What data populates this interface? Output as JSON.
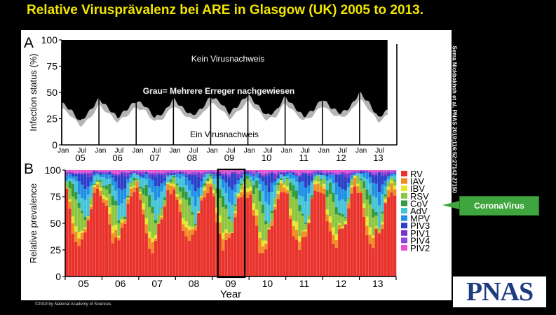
{
  "slide_title": "Relative Virusprävalenz bei ARE in Glasgow (UK) 2005 to 2013.",
  "side_credit": "Sema Nickbakhsh et al. PNAS 2019;116:52:27142-27150",
  "copyright": "©2019 by National Academy of Sciences",
  "logo_text": "PNAS",
  "callout_label": "CoronaVirus",
  "colors": {
    "title": "#f2e600",
    "callout": "#3fa53f",
    "logo": "#1d3b80",
    "pos": "#000000",
    "multi": "#b4b4b4",
    "neg": "#ffffff"
  },
  "chart_data": [
    {
      "panel_letter": "A",
      "type": "area",
      "ylabel": "Infection status (%)",
      "ylim": [
        0,
        100
      ],
      "yticks": [
        0,
        25,
        50,
        75,
        100
      ],
      "month_labels": [
        "Jan",
        "Jul"
      ],
      "year_labels": [
        "05",
        "06",
        "07",
        "08",
        "09",
        "10",
        "11",
        "12",
        "13"
      ],
      "annotations": {
        "top": "Kein Virusnachweis",
        "middle": "Grau= Mehrere Erreger nachgewiesen",
        "bottom": "Ein Virusnachweis"
      },
      "x_months": [
        0,
        3,
        6,
        9,
        12,
        15,
        18,
        21,
        24,
        27,
        30,
        33,
        36,
        39,
        42,
        45,
        48,
        51,
        54,
        57,
        60,
        63,
        66,
        69,
        72,
        75,
        78,
        81,
        84,
        87,
        90,
        93,
        96,
        99,
        102,
        105
      ],
      "series": [
        {
          "name": "Kein Virusnachweis",
          "color": "#ffffff"
        },
        {
          "name": "Grau= Mehrere Erreger nachgewiesen",
          "values": [
            35,
            28,
            18,
            25,
            38,
            30,
            22,
            28,
            36,
            32,
            22,
            26,
            38,
            30,
            24,
            28,
            40,
            35,
            25,
            32,
            42,
            33,
            24,
            27,
            40,
            31,
            23,
            28,
            38,
            30,
            26,
            31,
            44,
            34,
            22,
            28
          ],
          "color": "#b4b4b4"
        },
        {
          "name": "Ein Virusnachweis",
          "values": [
            40,
            33,
            22,
            32,
            44,
            35,
            26,
            34,
            42,
            37,
            26,
            31,
            44,
            35,
            28,
            34,
            46,
            41,
            30,
            38,
            48,
            38,
            28,
            32,
            46,
            36,
            27,
            33,
            44,
            35,
            30,
            36,
            50,
            40,
            26,
            33
          ],
          "color": "#000000"
        }
      ]
    },
    {
      "panel_letter": "B",
      "type": "bar",
      "stacked": true,
      "ylabel": "Relative prevalence",
      "xlabel": "Year",
      "ylim": [
        0,
        100
      ],
      "yticks": [
        0,
        25,
        50,
        75,
        100
      ],
      "year_labels": [
        "05",
        "06",
        "07",
        "08",
        "09",
        "10",
        "11",
        "12",
        "13"
      ],
      "highlight_year": "09",
      "legend_position": "right",
      "series": [
        {
          "name": "RV",
          "color": "#e8322b",
          "profile": [
            78,
            60,
            45,
            32,
            30,
            35,
            42,
            55,
            72,
            85,
            88,
            82
          ],
          "variation": 12
        },
        {
          "name": "IAV",
          "color": "#f08c22",
          "profile": [
            3,
            6,
            8,
            10,
            8,
            4,
            2,
            2,
            3,
            6,
            8,
            5
          ],
          "variation": 3
        },
        {
          "name": "IBV",
          "color": "#e8e62e",
          "profile": [
            2,
            4,
            6,
            6,
            4,
            2,
            1,
            1,
            1,
            2,
            3,
            2
          ],
          "variation": 2
        },
        {
          "name": "RSV",
          "color": "#8cc63f",
          "profile": [
            6,
            12,
            18,
            22,
            20,
            12,
            6,
            4,
            4,
            3,
            3,
            4
          ],
          "variation": 5
        },
        {
          "name": "CoV",
          "color": "#2f9a42",
          "profile": [
            1,
            6,
            10,
            9,
            6,
            3,
            1,
            1,
            1,
            1,
            1,
            1
          ],
          "variation": 2
        },
        {
          "name": "AdV",
          "color": "#46c3d6",
          "profile": [
            5,
            6,
            7,
            8,
            10,
            14,
            16,
            14,
            10,
            4,
            3,
            3
          ],
          "variation": 4
        },
        {
          "name": "MPV",
          "color": "#1f8fe6",
          "profile": [
            2,
            3,
            4,
            6,
            10,
            14,
            12,
            8,
            4,
            2,
            1,
            1
          ],
          "variation": 2
        },
        {
          "name": "PIV3",
          "color": "#2b3fc8",
          "profile": [
            1,
            1,
            1,
            2,
            6,
            10,
            14,
            10,
            4,
            1,
            1,
            1
          ],
          "variation": 2
        },
        {
          "name": "PIV1",
          "color": "#7a33c9",
          "profile": [
            1,
            1,
            1,
            1,
            1,
            1,
            1,
            2,
            3,
            2,
            1,
            1
          ],
          "variation": 1
        },
        {
          "name": "PIV4",
          "color": "#8e48d8",
          "profile": [
            1,
            1,
            0,
            1,
            1,
            1,
            1,
            1,
            1,
            1,
            1,
            1
          ],
          "variation": 1
        },
        {
          "name": "PIV2",
          "color": "#e64fd0",
          "profile": [
            1,
            1,
            1,
            2,
            3,
            3,
            2,
            2,
            2,
            1,
            1,
            1
          ],
          "variation": 1
        }
      ]
    }
  ]
}
